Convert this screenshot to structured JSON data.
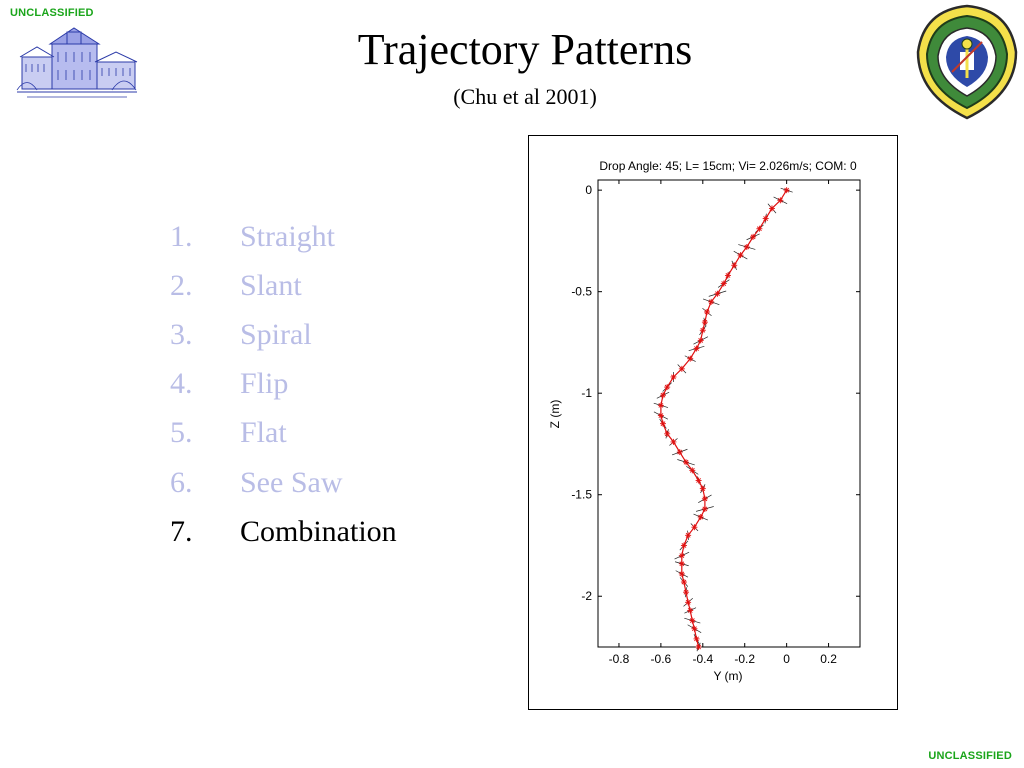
{
  "slide": {
    "classification_top": "UNCLASSIFIED",
    "classification_bottom": "UNCLASSIFIED",
    "title": "Trajectory Patterns",
    "subtitle": "(Chu et al 2001)",
    "logos": {
      "left": "building-sketch-logo",
      "right": "naval-postgraduate-school-seal"
    },
    "colors": {
      "classification": "#1aa51a",
      "faded_item": "#b9bde6",
      "active_item": "#000000",
      "trajectory": "#e01010",
      "pitch_lines": "#000000"
    }
  },
  "list": {
    "items": [
      {
        "num": "1.",
        "label": "Straight",
        "state": "faded"
      },
      {
        "num": "2.",
        "label": "Slant",
        "state": "faded"
      },
      {
        "num": "3.",
        "label": "Spiral",
        "state": "faded"
      },
      {
        "num": "4.",
        "label": "Flip",
        "state": "faded"
      },
      {
        "num": "5.",
        "label": "Flat",
        "state": "faded"
      },
      {
        "num": "6.",
        "label": "See Saw",
        "state": "faded"
      },
      {
        "num": "7.",
        "label": "Combination",
        "state": "active"
      }
    ]
  },
  "chart_data": {
    "type": "line",
    "title": "Drop Angle: 45; L= 15cm; Vi= 2.026m/s; COM: 0",
    "xlabel": "Y (m)",
    "ylabel": "Z (m)",
    "xlim": [
      -0.9,
      0.35
    ],
    "ylim": [
      -2.25,
      0.05
    ],
    "xticks": [
      -0.8,
      -0.6,
      -0.4,
      -0.2,
      0,
      0.2
    ],
    "xtick_labels": [
      "-0.8",
      "-0.6",
      "-0.4",
      "-0.2",
      "0",
      "0.2"
    ],
    "yticks": [
      0,
      -0.5,
      -1,
      -1.5,
      -2
    ],
    "ytick_labels": [
      "0",
      "-0.5",
      "-1",
      "-1.5",
      "-2"
    ],
    "grid": false,
    "marker": "asterisk",
    "series": [
      {
        "x": [
          0.0,
          -0.03,
          -0.07,
          -0.1,
          -0.13,
          -0.16,
          -0.19,
          -0.22,
          -0.25,
          -0.28,
          -0.3,
          -0.33,
          -0.36,
          -0.38,
          -0.39,
          -0.4,
          -0.41,
          -0.43,
          -0.46,
          -0.5,
          -0.54,
          -0.57,
          -0.59,
          -0.6,
          -0.6,
          -0.59,
          -0.57,
          -0.54,
          -0.51,
          -0.48,
          -0.45,
          -0.42,
          -0.4,
          -0.39,
          -0.39,
          -0.41,
          -0.44,
          -0.47,
          -0.49,
          -0.5,
          -0.5,
          -0.5,
          -0.49,
          -0.48,
          -0.47,
          -0.46,
          -0.45,
          -0.44,
          -0.43,
          -0.42
        ],
        "y": [
          -0.0,
          -0.05,
          -0.09,
          -0.14,
          -0.19,
          -0.23,
          -0.28,
          -0.32,
          -0.37,
          -0.42,
          -0.46,
          -0.51,
          -0.55,
          -0.6,
          -0.65,
          -0.69,
          -0.74,
          -0.78,
          -0.83,
          -0.88,
          -0.92,
          -0.97,
          -1.01,
          -1.06,
          -1.11,
          -1.15,
          -1.2,
          -1.24,
          -1.29,
          -1.34,
          -1.38,
          -1.43,
          -1.47,
          -1.52,
          -1.57,
          -1.61,
          -1.66,
          -1.7,
          -1.75,
          -1.8,
          -1.84,
          -1.89,
          -1.93,
          -1.98,
          -2.03,
          -2.07,
          -2.12,
          -2.16,
          -2.21,
          -2.25
        ]
      }
    ]
  }
}
